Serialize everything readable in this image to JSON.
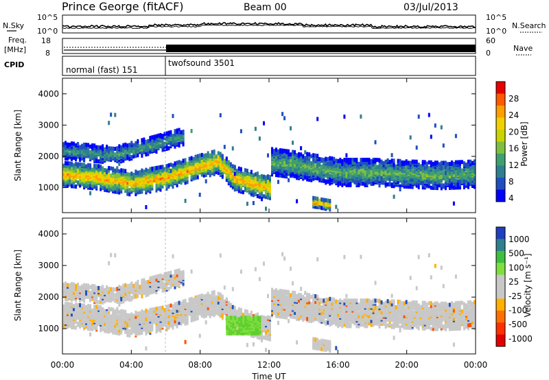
{
  "header": {
    "station": "Prince George (fitACF)",
    "beam": "Beam 00",
    "date": "03/Jul/2013"
  },
  "top_strip": {
    "nsky_label": "N.Sky",
    "nsky_ticks": [
      "10^5",
      "10^0"
    ],
    "nsearch_label": "N.Search",
    "nsearch_ticks": [
      "10^5",
      "10^0"
    ],
    "freq_label_1": "Freq.",
    "freq_label_2": "[MHz]",
    "freq_ticks": [
      "18",
      "8"
    ],
    "nave_label": "Nave",
    "nave_ticks": [
      "60",
      "0"
    ],
    "cpid_label": "CPID",
    "cpid_segments": [
      {
        "label": "normal (fast) 151",
        "start_h": 0,
        "end_h": 6
      },
      {
        "label": "twofsound 3501",
        "start_h": 6,
        "end_h": 24
      }
    ]
  },
  "chart_data": [
    {
      "type": "heatmap",
      "title": "",
      "xlabel": "Time UT",
      "ylabel": "Slant Range [km]",
      "xlim": [
        0,
        24
      ],
      "ylim": [
        200,
        4500
      ],
      "x_ticks": [
        "00:00",
        "04:00",
        "08:00",
        "12:00",
        "16:00",
        "20:00",
        "00:00"
      ],
      "y_ticks": [
        "1000",
        "2000",
        "3000",
        "4000"
      ],
      "colorbar": {
        "label": "Power [dB]",
        "ticks": [
          "28",
          "24",
          "20",
          "16",
          "12",
          "8",
          "4"
        ],
        "colors": [
          "#e80000",
          "#ff5a00",
          "#ff9e00",
          "#f2d000",
          "#c9d400",
          "#7fbf3f",
          "#3f9f6f",
          "#2f7f8f",
          "#1f4fbf",
          "#0000ff"
        ]
      },
      "features": [
        {
          "name": "main band",
          "path_h": [
            0,
            2,
            4,
            6,
            8,
            9,
            10,
            12
          ],
          "path_km": [
            1450,
            1350,
            1150,
            1350,
            1700,
            1850,
            1300,
            1000
          ],
          "width_km": 380,
          "strength": 24
        },
        {
          "name": "late band",
          "path_h": [
            12,
            14,
            16,
            18,
            20,
            22,
            24
          ],
          "path_km": [
            1850,
            1700,
            1500,
            1500,
            1450,
            1400,
            1450
          ],
          "width_km": 420,
          "strength": 14
        },
        {
          "name": "upper band",
          "path_h": [
            0,
            3,
            6,
            7
          ],
          "path_km": [
            2200,
            2050,
            2500,
            2650
          ],
          "width_km": 260,
          "strength": 12
        },
        {
          "name": "near-range patch",
          "path_h": [
            14.5,
            15.5
          ],
          "path_km": [
            550,
            450
          ],
          "width_km": 150,
          "strength": 26
        }
      ]
    },
    {
      "type": "heatmap",
      "title": "",
      "xlabel": "Time UT",
      "ylabel": "Slant Range [km]",
      "xlim": [
        0,
        24
      ],
      "ylim": [
        200,
        4500
      ],
      "x_ticks": [
        "00:00",
        "04:00",
        "08:00",
        "12:00",
        "16:00",
        "20:00",
        "00:00"
      ],
      "y_ticks": [
        "1000",
        "2000",
        "3000",
        "4000"
      ],
      "colorbar": {
        "label": "Velocity [m s⁻¹]",
        "ticks": [
          "1000",
          "500",
          "100",
          "25",
          "-25",
          "-100",
          "-500",
          "-1000"
        ],
        "colors": [
          "#1f3fbf",
          "#2f7f8f",
          "#3fbf3f",
          "#7fdf3f",
          "#c8c8c8",
          "#c8c8c8",
          "#ffb000",
          "#ff7000",
          "#ff3000",
          "#e00000"
        ]
      },
      "features": [
        {
          "name": "ground scatter",
          "color": "grey"
        },
        {
          "name": "green patch",
          "start_h": 9.5,
          "end_h": 11.5,
          "range_km": [
            850,
            1350
          ]
        }
      ]
    }
  ]
}
